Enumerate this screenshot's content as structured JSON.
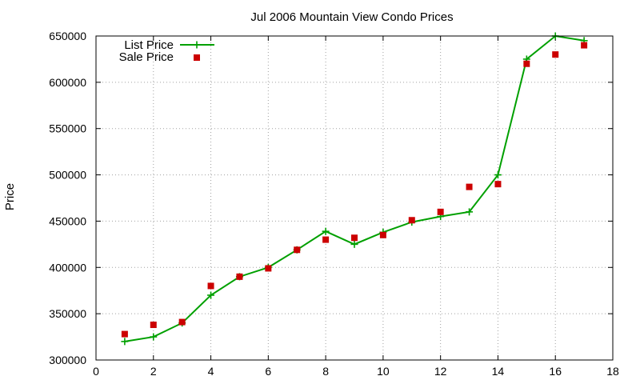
{
  "chart_data": {
    "type": "line",
    "title": "Jul 2006 Mountain View Condo Prices",
    "xlabel": "",
    "ylabel": "Price",
    "xlim": [
      0,
      18
    ],
    "ylim": [
      300000,
      650000
    ],
    "xticks": [
      0,
      2,
      4,
      6,
      8,
      10,
      12,
      14,
      16,
      18
    ],
    "yticks": [
      300000,
      350000,
      400000,
      450000,
      500000,
      550000,
      600000,
      650000
    ],
    "grid": true,
    "legend_position": "top-left",
    "series": [
      {
        "name": "List Price",
        "style": "line-with-plus-markers",
        "color": "#00a000",
        "x": [
          1,
          2,
          3,
          4,
          5,
          6,
          7,
          8,
          9,
          10,
          11,
          12,
          13,
          14,
          15,
          16,
          17
        ],
        "y": [
          320000,
          325000,
          340000,
          370000,
          390000,
          400000,
          419000,
          439000,
          425000,
          438000,
          449000,
          455000,
          460000,
          500000,
          625000,
          650000,
          645000
        ]
      },
      {
        "name": "Sale Price",
        "style": "square-markers",
        "color": "#cc0000",
        "x": [
          1,
          2,
          3,
          4,
          5,
          6,
          7,
          8,
          9,
          10,
          11,
          12,
          13,
          14,
          15,
          16,
          17
        ],
        "y": [
          328000,
          338000,
          341000,
          380000,
          390000,
          399000,
          419000,
          430000,
          432000,
          435000,
          451000,
          460000,
          487000,
          490000,
          620000,
          630000,
          640000
        ]
      }
    ]
  }
}
